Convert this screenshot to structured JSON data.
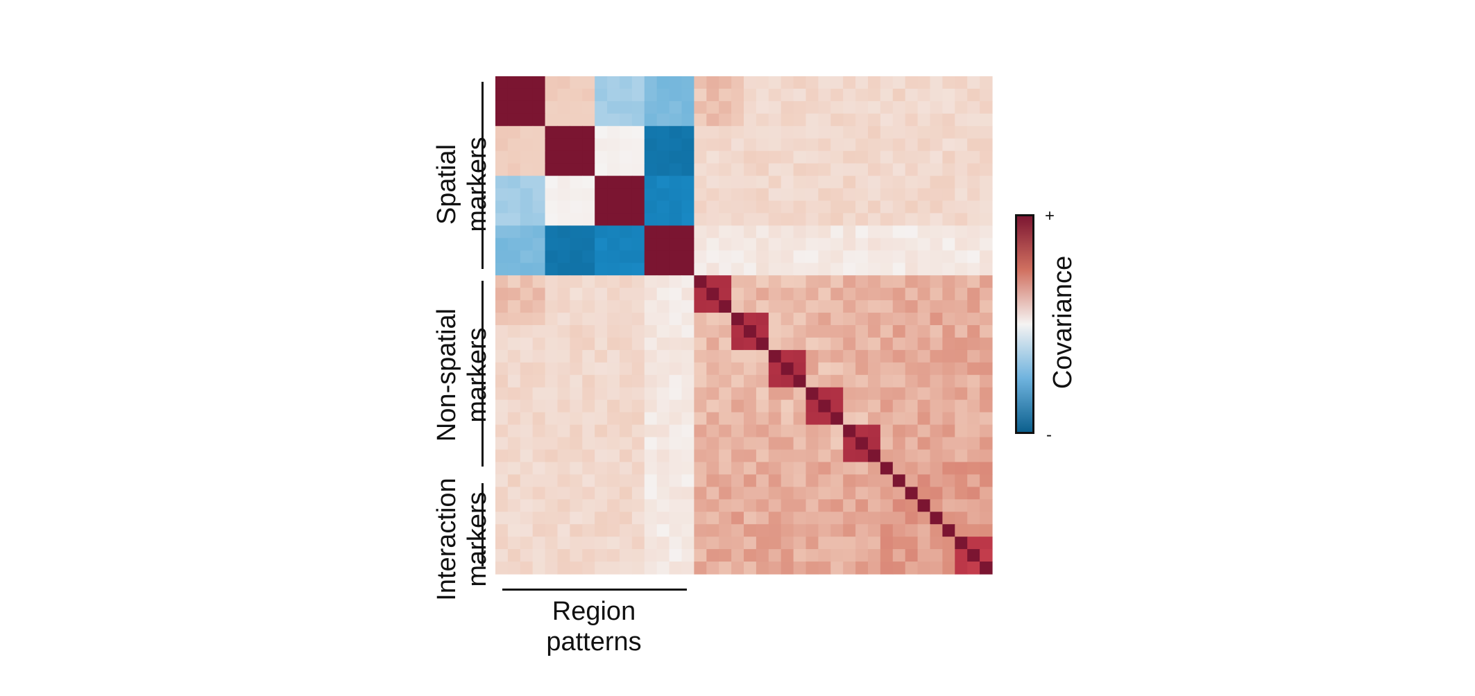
{
  "chart_data": {
    "type": "heatmap",
    "n": 40,
    "blocks": [
      {
        "name": "Spatial markers",
        "start": 0,
        "end": 16
      },
      {
        "name": "Non-spatial markers",
        "start": 16,
        "end": 31
      },
      {
        "name": "Interaction markers",
        "start": 31,
        "end": 40
      }
    ],
    "row_groups": [
      {
        "lines": [
          "Spatial",
          "markers"
        ]
      },
      {
        "lines": [
          "Non-spatial",
          "markers"
        ]
      },
      {
        "lines": [
          "Interaction",
          "markers"
        ]
      }
    ],
    "column_group": {
      "lines": [
        "Region",
        "patterns"
      ]
    },
    "colorbar": {
      "label": "Covariance",
      "max_label": "+",
      "min_label": "-"
    },
    "value_range": [
      -1,
      1
    ],
    "description_note": ""
  },
  "colors": {
    "strong_positive": "#7b1531",
    "positive": "#c23a4a",
    "mild_positive": "#ebb39c",
    "neutral": "#f5f0ee",
    "mild_negative": "#b7d6ea",
    "negative": "#1a8cc8",
    "strong_negative": "#0a5e8c"
  }
}
